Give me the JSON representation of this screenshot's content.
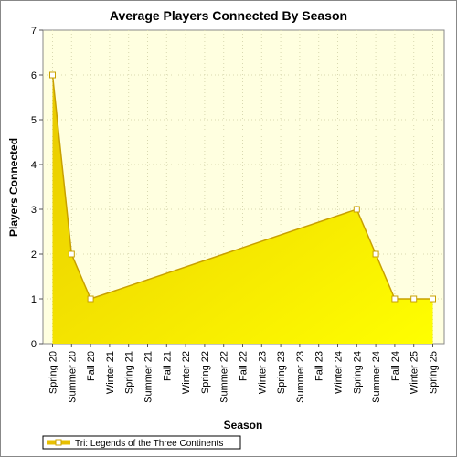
{
  "chart_data": {
    "type": "area",
    "title": "Average Players Connected By Season",
    "xlabel": "Season",
    "ylabel": "Players Connected",
    "ylim": [
      0,
      7
    ],
    "yticks": [
      0,
      1,
      2,
      3,
      4,
      5,
      6,
      7
    ],
    "categories": [
      "Spring 20",
      "Summer 20",
      "Fall 20",
      "Winter 21",
      "Spring 21",
      "Summer 21",
      "Fall 21",
      "Winter 22",
      "Spring 22",
      "Summer 22",
      "Fall 22",
      "Winter 23",
      "Spring 23",
      "Summer 23",
      "Fall 23",
      "Winter 24",
      "Spring 24",
      "Summer 24",
      "Fall 24",
      "Winter 25",
      "Spring 25"
    ],
    "series": [
      {
        "name": "Tri: Legends of the Three Continents",
        "points": [
          {
            "x": "Spring 20",
            "y": 6
          },
          {
            "x": "Summer 20",
            "y": 2
          },
          {
            "x": "Fall 20",
            "y": 1
          },
          {
            "x": "Spring 24",
            "y": 3
          },
          {
            "x": "Summer 24",
            "y": 2
          },
          {
            "x": "Fall 24",
            "y": 1
          },
          {
            "x": "Winter 25",
            "y": 1
          },
          {
            "x": "Spring 25",
            "y": 1
          }
        ]
      }
    ],
    "grid": true,
    "legend_position": "bottom-left",
    "colors": {
      "fill_top": "#ffff00",
      "fill_bottom": "#e8c800",
      "line": "#c8a000",
      "plot_bg": "#ffffe0",
      "grid": "#d8d8b0"
    }
  }
}
